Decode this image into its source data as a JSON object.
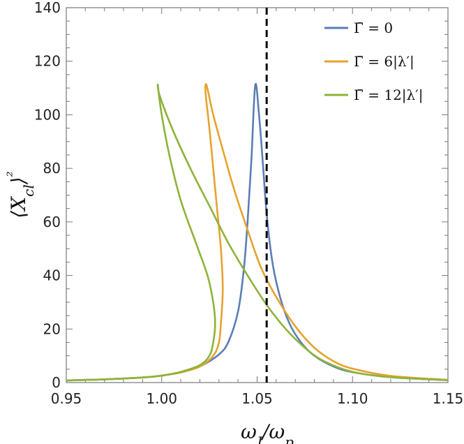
{
  "chart_data": {
    "type": "line",
    "xlabel": "ωJ/ωp",
    "ylabel": "⟨Xcl⟩²",
    "xlim": [
      0.95,
      1.15
    ],
    "ylim": [
      0,
      140
    ],
    "x_ticks": [
      0.95,
      1.0,
      1.05,
      1.1,
      1.15
    ],
    "x_tick_labels": [
      "0.95",
      "1.00",
      "1.05",
      "1.10",
      "1.15"
    ],
    "y_ticks": [
      0,
      20,
      40,
      60,
      80,
      100,
      120,
      140
    ],
    "y_tick_labels": [
      "0",
      "20",
      "40",
      "60",
      "80",
      "100",
      "120",
      "140"
    ],
    "grid": false,
    "legend_position": "top-right",
    "vertical_line": {
      "x": 1.055,
      "style": "dashed",
      "color": "#000000"
    },
    "series": [
      {
        "name": "Γ̄ = 0",
        "color": "#5b7db5",
        "x": [
          0.95,
          0.97,
          0.99,
          1.0,
          1.01,
          1.02,
          1.03,
          1.035,
          1.04,
          1.043,
          1.045,
          1.047,
          1.049,
          1.051,
          1.053,
          1.055,
          1.058,
          1.062,
          1.067,
          1.073,
          1.08,
          1.09,
          1.1,
          1.12,
          1.15
        ],
        "y": [
          0.8,
          1.2,
          1.9,
          2.6,
          3.8,
          6.0,
          10.5,
          15.3,
          26.5,
          42.0,
          60.0,
          83.0,
          111.0,
          100.0,
          82.0,
          63.0,
          45.0,
          32.0,
          22.0,
          15.0,
          10.0,
          6.0,
          3.9,
          2.0,
          0.9
        ]
      },
      {
        "name": "Γ̄ = 6|λ′|",
        "color": "#e5a32e",
        "x": [
          0.95,
          0.97,
          0.99,
          1.0,
          1.01,
          1.02,
          1.027,
          1.03,
          1.031,
          1.032,
          1.031,
          1.029,
          1.027,
          1.025,
          1.023,
          1.0235,
          1.027,
          1.032,
          1.038,
          1.045,
          1.052,
          1.06,
          1.07,
          1.08,
          1.09,
          1.1,
          1.12,
          1.15
        ],
        "y": [
          0.8,
          1.2,
          1.9,
          2.6,
          3.8,
          6.0,
          10.0,
          15.0,
          22.0,
          35.0,
          50.0,
          65.0,
          80.0,
          95.0,
          108.0,
          111.0,
          100.0,
          87.0,
          72.0,
          57.0,
          43.0,
          32.0,
          21.0,
          13.0,
          8.0,
          5.2,
          2.5,
          1.0
        ]
      },
      {
        "name": "Γ̄ = 12|λ′|",
        "color": "#8db33a",
        "x": [
          0.95,
          0.97,
          0.99,
          1.0,
          1.01,
          1.02,
          1.025,
          1.027,
          1.028,
          1.027,
          1.024,
          1.018,
          1.01,
          1.004,
          1.0,
          0.998,
          0.999,
          1.006,
          1.015,
          1.025,
          1.035,
          1.045,
          1.055,
          1.065,
          1.075,
          1.085,
          1.1,
          1.12,
          1.15
        ],
        "y": [
          0.8,
          1.2,
          1.9,
          2.6,
          4.0,
          6.5,
          10.0,
          15.0,
          22.0,
          30.0,
          40.0,
          52.0,
          68.0,
          85.0,
          100.0,
          111.0,
          107.0,
          94.0,
          80.0,
          66.0,
          52.0,
          40.0,
          29.0,
          20.0,
          13.0,
          8.0,
          4.0,
          2.0,
          0.9
        ]
      }
    ]
  }
}
